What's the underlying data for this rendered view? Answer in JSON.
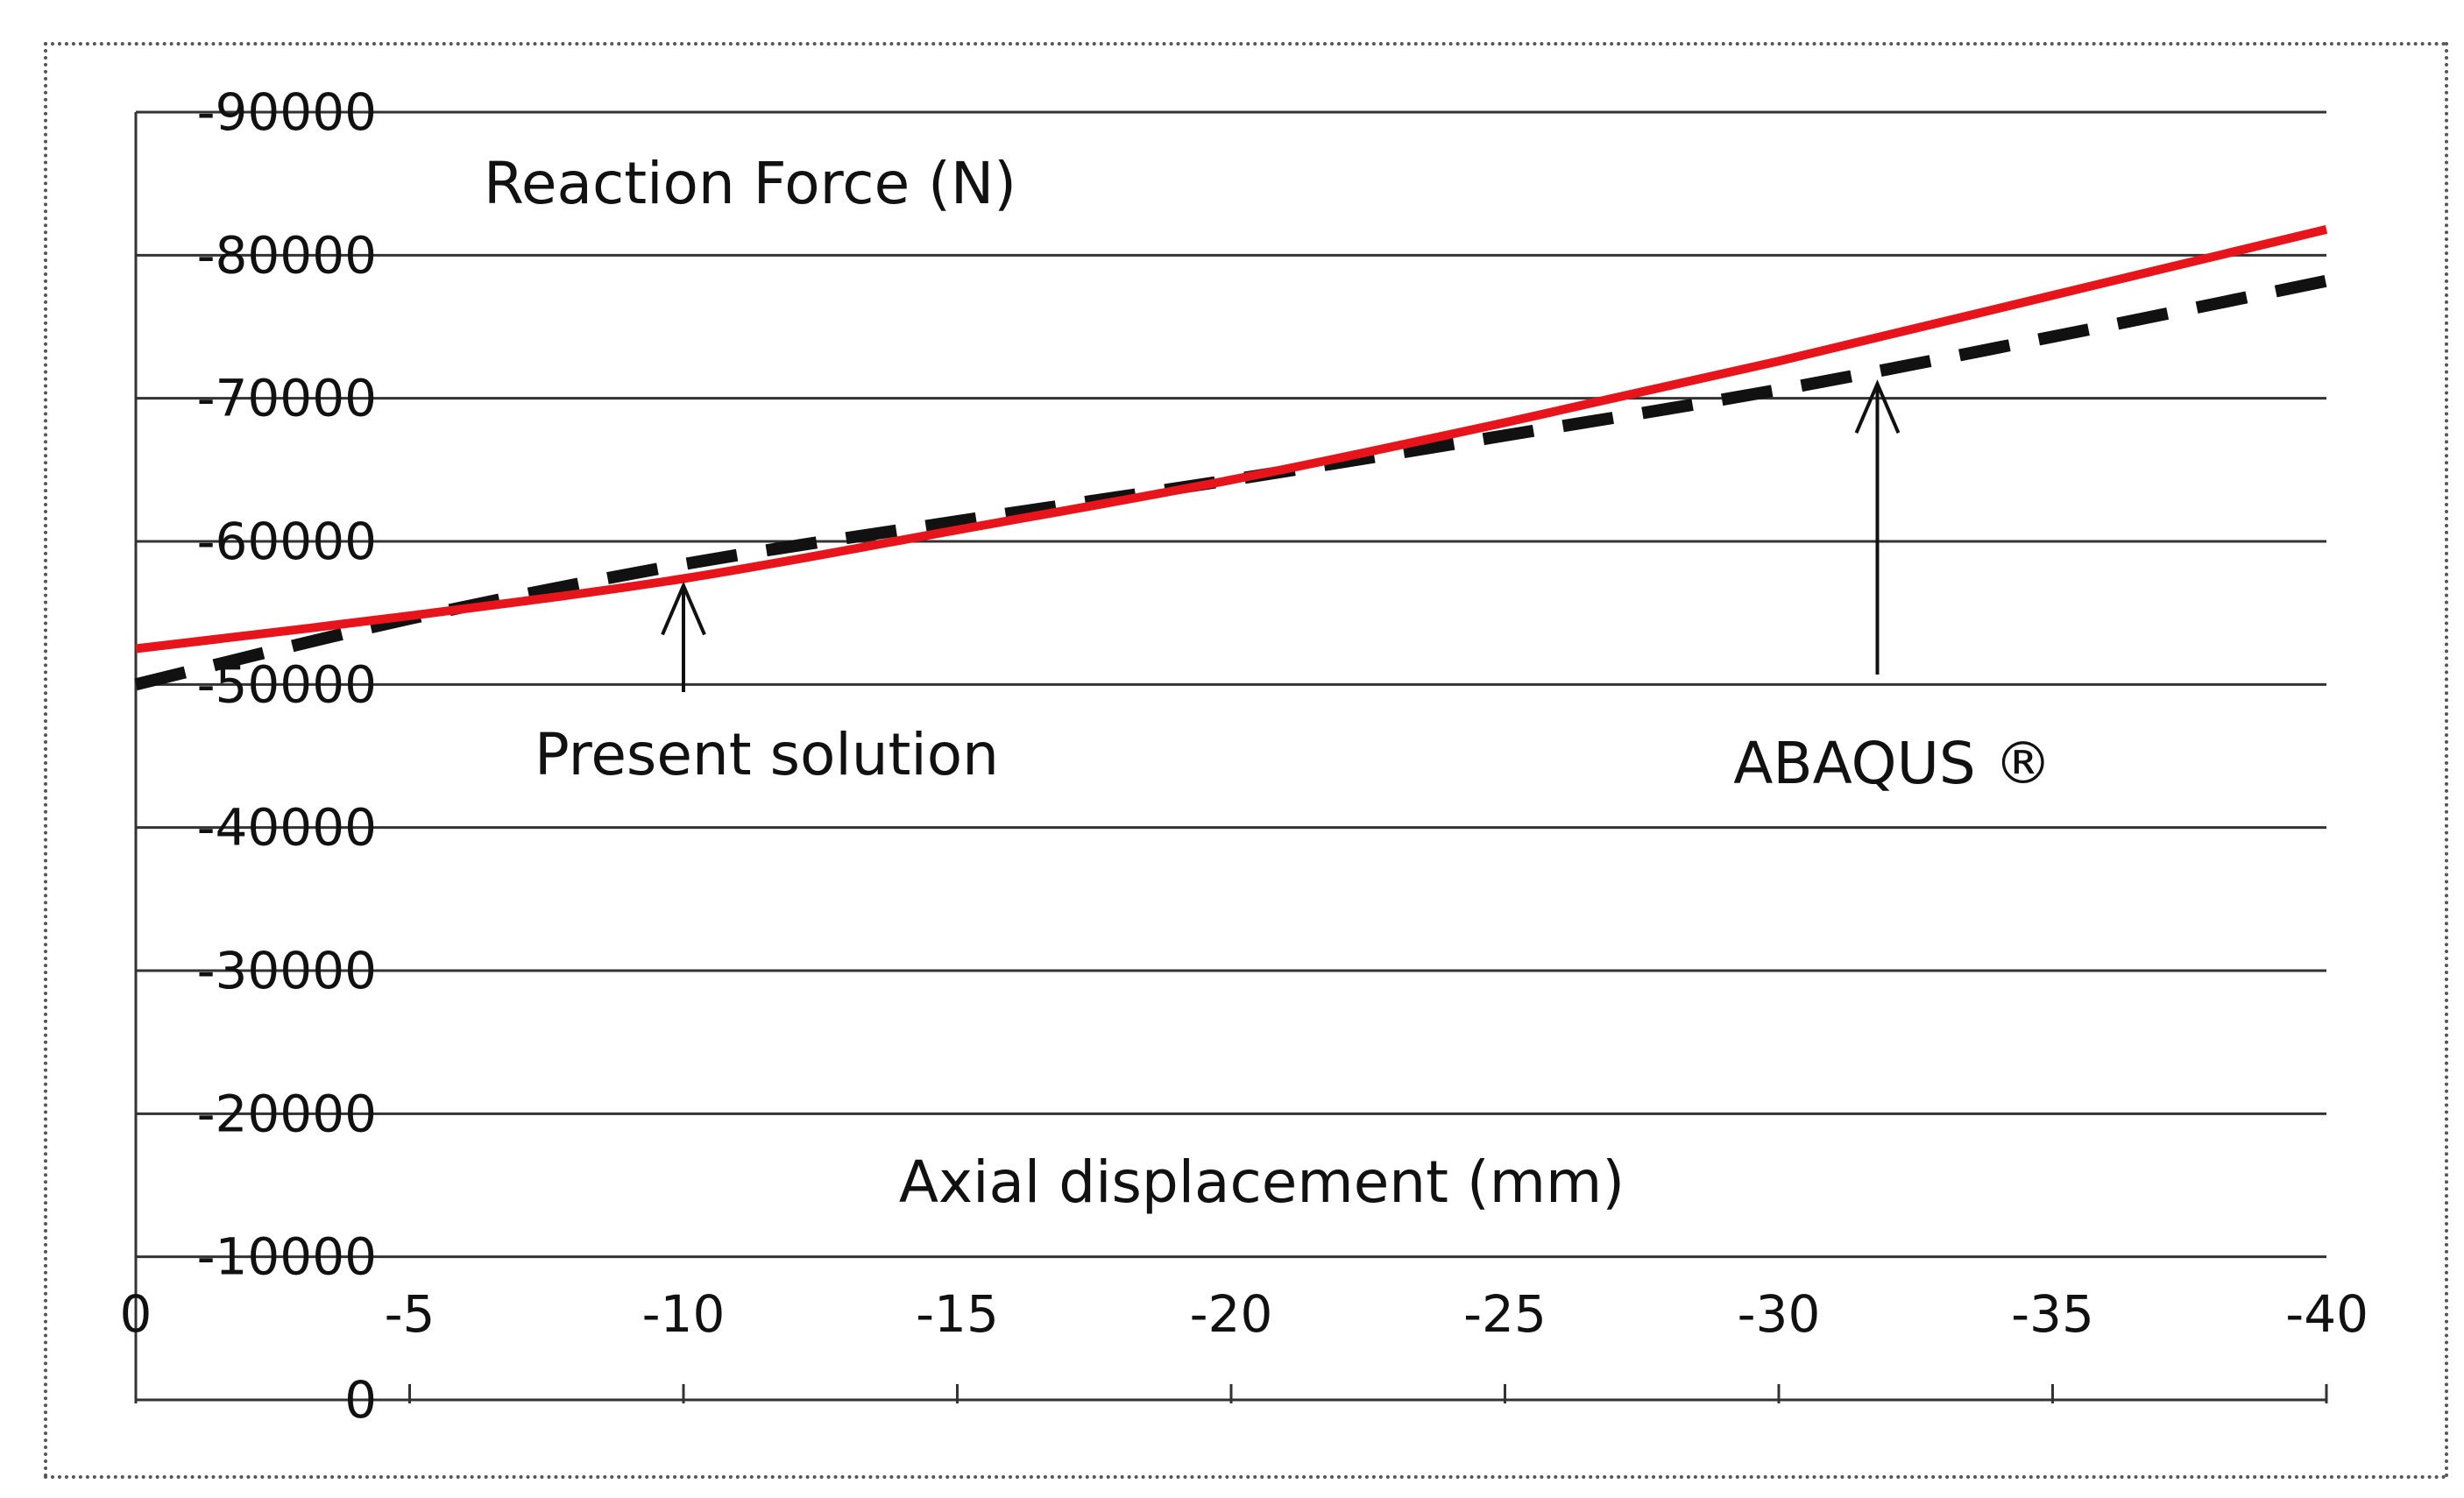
{
  "chart_data": {
    "type": "line",
    "title": "",
    "xlabel": "Axial displacement (mm)",
    "ylabel": "Reaction Force (N)",
    "xlim": [
      0,
      -40
    ],
    "ylim": [
      0,
      -90000
    ],
    "x_ticks": [
      0,
      -5,
      -10,
      -15,
      -20,
      -25,
      -30,
      -35,
      -40
    ],
    "x_tick_labels": [
      "0",
      "-5",
      "-10",
      "-15",
      "-20",
      "-25",
      "-30",
      "-35",
      "-40"
    ],
    "y_ticks": [
      0,
      -10000,
      -20000,
      -30000,
      -40000,
      -50000,
      -60000,
      -70000,
      -80000,
      -90000
    ],
    "y_tick_labels": [
      "0",
      "-10000",
      "-20000",
      "-30000",
      "-40000",
      "-50000",
      "-60000",
      "-70000",
      "-80000",
      "-90000"
    ],
    "grid": "horizontal",
    "legend": "none",
    "series": [
      {
        "name": "Present solution",
        "style": "solid",
        "color": "#e8141c",
        "x": [
          0,
          -5,
          -10,
          -15,
          -20,
          -25,
          -30,
          -35,
          -40
        ],
        "y": [
          -52500,
          -54800,
          -57400,
          -60800,
          -64300,
          -68300,
          -72600,
          -77200,
          -81800
        ]
      },
      {
        "name": "ABAQUS ®",
        "style": "dashed",
        "color": "#111111",
        "x": [
          0,
          -5,
          -10,
          -15,
          -20,
          -25,
          -30,
          -35,
          -40
        ],
        "y": [
          -50000,
          -54600,
          -58400,
          -61400,
          -64300,
          -67400,
          -70600,
          -74300,
          -78200
        ]
      }
    ],
    "annotations": [
      {
        "text": "Present solution",
        "arrow_to": {
          "x": -10,
          "y": -57400
        }
      },
      {
        "text": "ABAQUS ®",
        "arrow_to": {
          "x": -31.8,
          "y": -71500
        }
      }
    ]
  }
}
